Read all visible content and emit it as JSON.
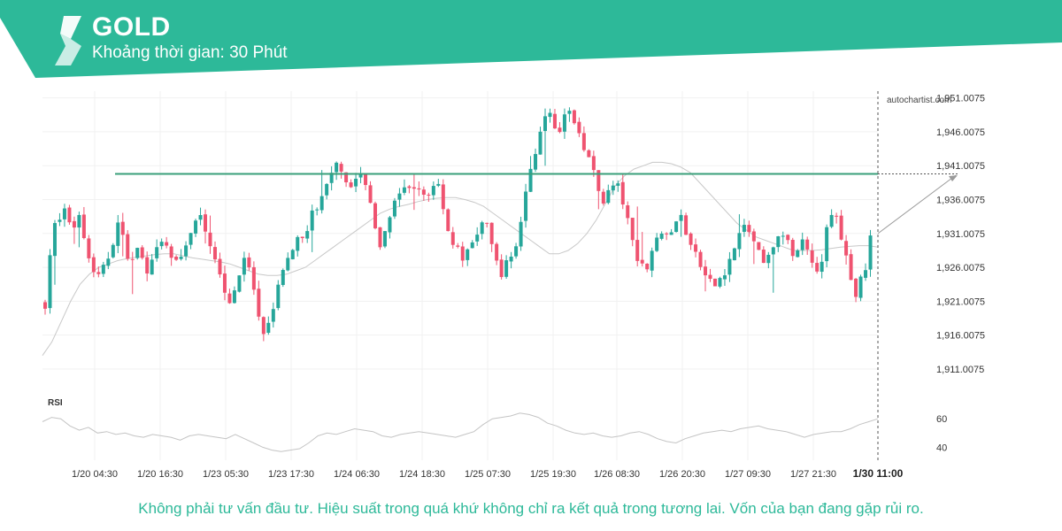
{
  "header": {
    "title": "GOLD",
    "subtitle": "Khoảng thời gian: 30 Phút",
    "accent_color": "#2db999",
    "logo_icon": "autochartist-s-logo-icon"
  },
  "watermark": "autochartist.com",
  "chart_data": {
    "type": "candlestick",
    "symbol": "GOLD",
    "interval": "30 Phút",
    "ylim": [
      1908.0,
      1952.0
    ],
    "y_ticks": [
      "1,951.0075",
      "1,946.0075",
      "1,941.0075",
      "1,936.0075",
      "1,931.0075",
      "1,926.0075",
      "1,921.0075",
      "1,916.0075",
      "1,911.0075"
    ],
    "y_tick_values": [
      1951.0075,
      1946.0075,
      1941.0075,
      1936.0075,
      1931.0075,
      1926.0075,
      1921.0075,
      1916.0075,
      1911.0075
    ],
    "x_ticks": [
      "1/20 04:30",
      "1/20 16:30",
      "1/23 05:30",
      "1/23 17:30",
      "1/24 06:30",
      "1/24 18:30",
      "1/25 07:30",
      "1/25 19:30",
      "1/26 08:30",
      "1/26 20:30",
      "1/27 09:30",
      "1/27 21:30"
    ],
    "current_x_label": "1/30 11:00",
    "resistance_level": 1939.8,
    "projection": {
      "from": 1931.0,
      "to": 1939.6
    },
    "bull_color": "#26a69a",
    "bear_color": "#ef5370",
    "close_path": [
      1920.7,
      1928,
      1932,
      1933,
      1934.5,
      1933,
      1932,
      1934,
      1931,
      1928,
      1926,
      1924.5,
      1927,
      1926,
      1929,
      1933,
      1931,
      1928,
      1927,
      1929,
      1928,
      1926,
      1925.5,
      1928,
      1929,
      1930,
      1928,
      1927,
      1926,
      1929,
      1930.5,
      1932,
      1933,
      1933.5,
      1931,
      1929,
      1927,
      1924,
      1922,
      1921,
      1923,
      1926,
      1927,
      1925,
      1922,
      1917,
      1915,
      1918,
      1921,
      1924,
      1926,
      1927,
      1928,
      1930,
      1931,
      1932,
      1934,
      1935,
      1936,
      1938,
      1940,
      1942,
      1941,
      1939,
      1938,
      1939,
      1940,
      1938,
      1936,
      1933,
      1928,
      1930,
      1933,
      1935,
      1936,
      1937,
      1938,
      1938,
      1937,
      1937,
      1936,
      1938,
      1939,
      1937,
      1933,
      1930,
      1929,
      1928,
      1927,
      1929,
      1930,
      1932,
      1933,
      1931,
      1928,
      1926,
      1925,
      1927,
      1928,
      1930,
      1934,
      1938,
      1941,
      1944,
      1946,
      1948,
      1949,
      1947,
      1946,
      1948,
      1949.5,
      1947,
      1946,
      1944,
      1942,
      1940,
      1937,
      1936,
      1937,
      1938,
      1938,
      1936,
      1933,
      1930,
      1928,
      1926,
      1926,
      1928,
      1931,
      1931.5,
      1930,
      1931,
      1932,
      1934,
      1932,
      1930,
      1928,
      1927,
      1925,
      1924,
      1923,
      1924,
      1925,
      1926,
      1928,
      1930,
      1931.5,
      1932,
      1931,
      1929,
      1927,
      1926,
      1928,
      1930,
      1931.5,
      1930,
      1929,
      1928,
      1929,
      1930,
      1929,
      1927,
      1925,
      1928,
      1932,
      1934,
      1933,
      1930,
      1927,
      1924,
      1922,
      1924,
      1926,
      1930.5
    ],
    "ma_path": [
      1913,
      1915,
      1918,
      1921,
      1923.5,
      1925,
      1926,
      1926.5,
      1927,
      1927.3,
      1927.5,
      1927.7,
      1927.9,
      1928,
      1928,
      1927.7,
      1927.4,
      1927.2,
      1927,
      1926.8,
      1926.5,
      1926,
      1925.5,
      1925,
      1924.8,
      1924.8,
      1925,
      1925.5,
      1926,
      1927,
      1928,
      1929,
      1930,
      1931,
      1932,
      1933,
      1934,
      1934.6,
      1935,
      1935.3,
      1935.7,
      1936,
      1936.2,
      1936.3,
      1936.3,
      1936,
      1935.6,
      1935,
      1934,
      1933,
      1932,
      1931,
      1930,
      1929,
      1928,
      1928,
      1928.5,
      1929.5,
      1931,
      1933,
      1935.5,
      1938,
      1939.5,
      1940.5,
      1941,
      1941.5,
      1941.5,
      1941.3,
      1940.8,
      1940,
      1938.5,
      1937,
      1935.5,
      1934,
      1932.5,
      1931.5,
      1930.5,
      1930,
      1929.5,
      1929,
      1928.5,
      1928.5,
      1928.5,
      1928.6,
      1928.8,
      1929,
      1929.1,
      1929.2,
      1929.2,
      1929
    ],
    "rsi": {
      "label": "RSI",
      "ticks": [
        "60",
        "40"
      ],
      "tick_values": [
        60,
        40
      ],
      "ylim": [
        34,
        67
      ],
      "path": [
        58,
        61,
        60,
        55,
        52,
        54,
        50,
        51,
        49,
        50,
        48,
        47,
        49,
        48,
        47,
        45,
        48,
        49,
        48,
        47,
        46,
        49,
        46,
        43,
        40,
        38,
        37,
        38,
        39,
        43,
        48,
        50,
        49,
        51,
        53,
        52,
        51,
        48,
        47,
        49,
        50,
        51,
        50,
        49,
        48,
        47,
        49,
        51,
        56,
        60,
        61,
        62,
        64,
        63,
        61,
        57,
        55,
        52,
        50,
        49,
        50,
        48,
        47,
        48,
        50,
        51,
        49,
        46,
        44,
        43,
        46,
        48,
        50,
        51,
        52,
        51,
        53,
        54,
        55,
        53,
        52,
        51,
        49,
        47,
        49,
        50,
        51,
        51,
        53,
        56,
        58,
        60
      ]
    }
  },
  "disclaimer": "Không phải tư vấn đầu tư. Hiệu suất trong quá khứ không chỉ ra kết quả trong tương lai. Vốn của bạn đang gặp rủi ro."
}
